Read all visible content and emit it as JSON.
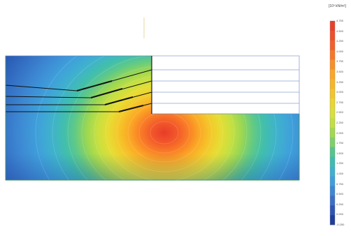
{
  "legend": {
    "unit": "[10³ kN/m²]",
    "ticks": [
      "4.750",
      "4.500",
      "4.250",
      "4.000",
      "3.750",
      "3.500",
      "3.250",
      "3.000",
      "2.750",
      "2.500",
      "2.250",
      "2.000",
      "1.750",
      "1.500",
      "1.250",
      "1.000",
      "0.750",
      "0.500",
      "0.250",
      "0.000",
      "-0.250"
    ],
    "colors": [
      "#e8402a",
      "#ef4e2a",
      "#f35f29",
      "#f77727",
      "#fa8f26",
      "#fba625",
      "#f8b526",
      "#f2c62a",
      "#e9d72e",
      "#d9e03a",
      "#c2df42",
      "#a3d94f",
      "#7fd06a",
      "#55c58e",
      "#3fbcb0",
      "#3eb1cf",
      "#3f9fdc",
      "#3e87d4",
      "#3b6fc7",
      "#2f55b4",
      "#1f3d9a"
    ]
  },
  "chart_data": {
    "type": "heatmap",
    "title": "",
    "colorbar_label": "[10³ kN/m²]",
    "colorbar_ticks": [
      4.75,
      4.5,
      4.25,
      4.0,
      3.75,
      3.5,
      3.25,
      3.0,
      2.75,
      2.5,
      2.25,
      2.0,
      1.75,
      1.5,
      1.25,
      1.0,
      0.75,
      0.5,
      0.25,
      0.0,
      -0.25
    ],
    "value_range": [
      -0.25,
      4.75
    ],
    "peak_value": 4.75
  }
}
